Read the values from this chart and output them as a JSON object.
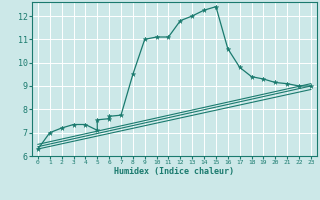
{
  "title": "",
  "xlabel": "Humidex (Indice chaleur)",
  "xlim": [
    -0.5,
    23.5
  ],
  "ylim": [
    6,
    12.6
  ],
  "yticks": [
    6,
    7,
    8,
    9,
    10,
    11,
    12
  ],
  "xticks": [
    0,
    1,
    2,
    3,
    4,
    5,
    6,
    7,
    8,
    9,
    10,
    11,
    12,
    13,
    14,
    15,
    16,
    17,
    18,
    19,
    20,
    21,
    22,
    23
  ],
  "background_color": "#cce8e8",
  "grid_color": "#ffffff",
  "line_color": "#1a7a6e",
  "main_line": {
    "x": [
      0,
      1,
      2,
      3,
      4,
      5,
      5,
      6,
      6,
      7,
      8,
      9,
      10,
      11,
      12,
      13,
      14,
      15,
      16,
      17,
      18,
      19,
      20,
      21,
      22,
      23
    ],
    "y": [
      6.3,
      7.0,
      7.2,
      7.35,
      7.35,
      7.1,
      7.55,
      7.6,
      7.7,
      7.75,
      9.5,
      11.0,
      11.1,
      11.1,
      11.8,
      12.0,
      12.25,
      12.4,
      10.6,
      9.8,
      9.4,
      9.3,
      9.15,
      9.1,
      9.0,
      9.0
    ]
  },
  "ref_lines": [
    {
      "x": [
        0,
        23
      ],
      "y": [
        6.3,
        8.85
      ]
    },
    {
      "x": [
        0,
        23
      ],
      "y": [
        6.4,
        9.0
      ]
    },
    {
      "x": [
        0,
        23
      ],
      "y": [
        6.5,
        9.1
      ]
    }
  ]
}
